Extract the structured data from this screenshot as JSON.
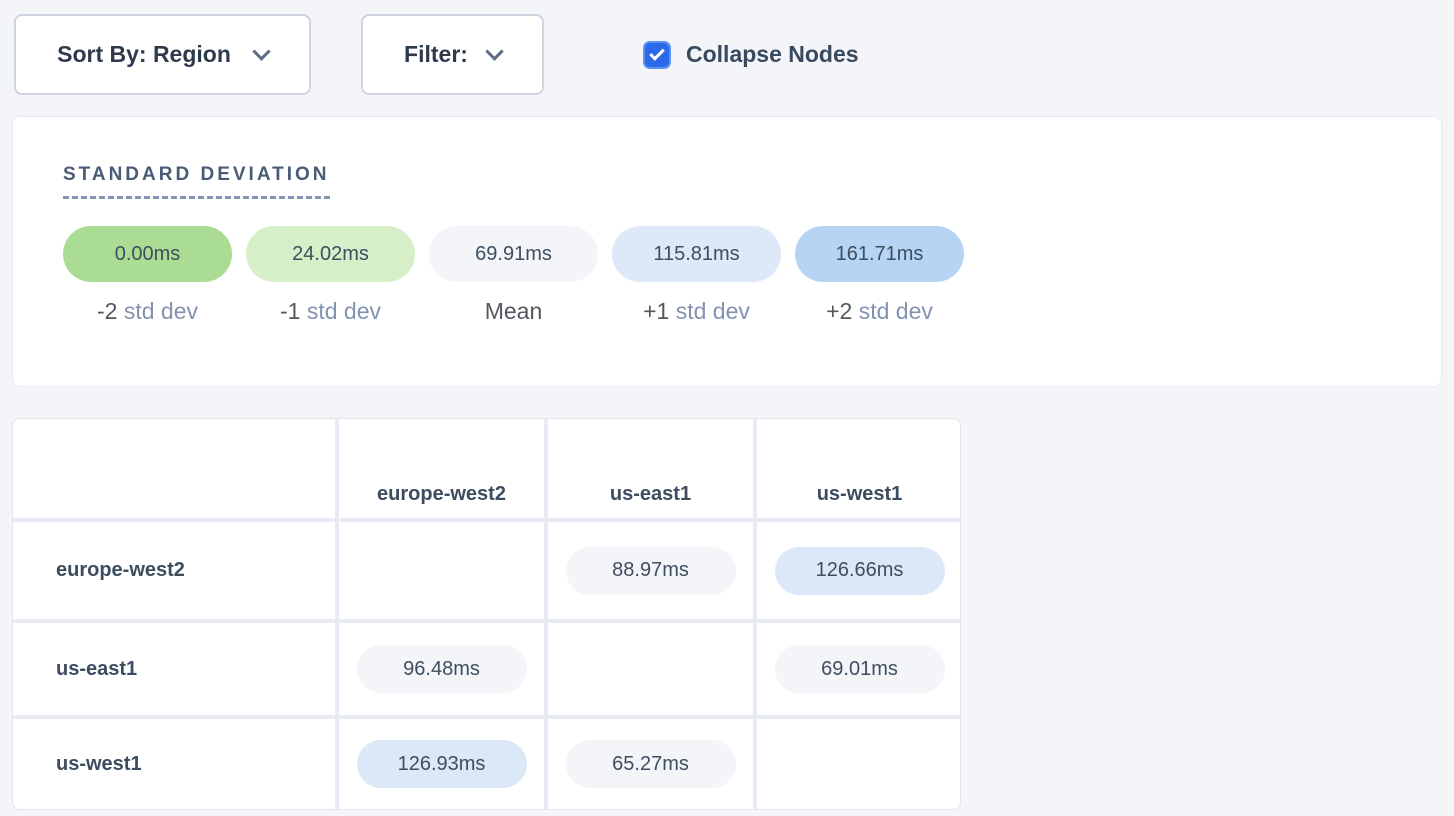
{
  "toolbar": {
    "sort_by_label": "Sort By: Region",
    "filter_label": "Filter:",
    "collapse_nodes": {
      "label": "Collapse Nodes",
      "checked": true
    }
  },
  "legend": {
    "title": "STANDARD DEVIATION",
    "items": [
      {
        "value": "0.00ms",
        "label_num": "-2",
        "label_text": " std dev",
        "color": "#abdc94"
      },
      {
        "value": "24.02ms",
        "label_num": "-1",
        "label_text": " std dev",
        "color": "#d7efc8"
      },
      {
        "value": "69.91ms",
        "label_num": "Mean",
        "label_text": "",
        "color": "#f3f5f9"
      },
      {
        "value": "115.81ms",
        "label_num": "+1",
        "label_text": " std dev",
        "color": "#dde9f8"
      },
      {
        "value": "161.71ms",
        "label_num": "+2",
        "label_text": " std dev",
        "color": "#b6d5f4"
      }
    ]
  },
  "matrix": {
    "columns": [
      "europe-west2",
      "us-east1",
      "us-west1"
    ],
    "rows": [
      {
        "label": "europe-west2",
        "cells": [
          null,
          {
            "value": "88.97ms",
            "color": "#f3f5f9"
          },
          {
            "value": "126.66ms",
            "color": "#dbe8f7"
          }
        ]
      },
      {
        "label": "us-east1",
        "cells": [
          {
            "value": "96.48ms",
            "color": "#f3f5f9"
          },
          null,
          {
            "value": "69.01ms",
            "color": "#f3f5f9"
          }
        ]
      },
      {
        "label": "us-west1",
        "cells": [
          {
            "value": "126.93ms",
            "color": "#dbe8f7"
          },
          {
            "value": "65.27ms",
            "color": "#f3f5f9"
          },
          null
        ]
      }
    ]
  },
  "colors": {
    "page_bg": "#f4f5f8",
    "checkbox_blue": "#2a6ae9",
    "pill_gray": "#f3f5f9",
    "pill_blue": "#dbe8f7",
    "pill_green": "#abdc94",
    "heading_slate": "#4a5b78",
    "muted_label": "#8292b0"
  }
}
